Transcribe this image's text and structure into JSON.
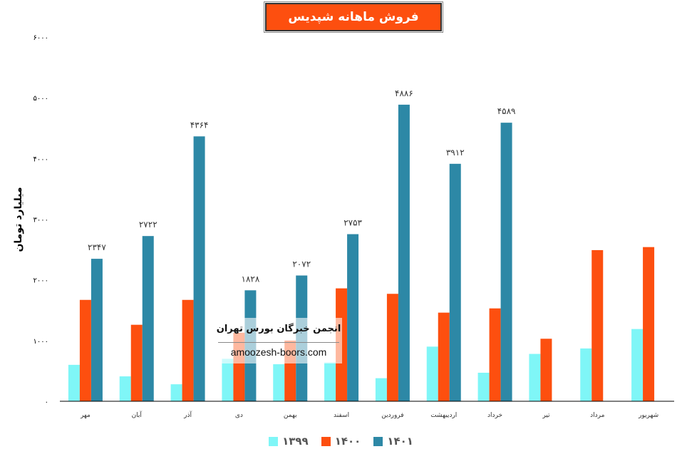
{
  "title": "فروش ماهانه شپدیس",
  "watermark": {
    "line1": "انجمن خبرگان بورس تهران",
    "line2": "amoozesh-boors.com"
  },
  "colors": {
    "s1399": "#7ff6f7",
    "s1400": "#fd4f0f",
    "s1401": "#2d88a6",
    "title_bg": "#fd4f0f"
  },
  "chart_data": {
    "type": "bar",
    "title": "فروش ماهانه شپدیس",
    "ylabel": "میلیارد تومان",
    "xlabel": "",
    "ylim": [
      0,
      6000
    ],
    "yticks": [
      "۰",
      "۱۰۰۰",
      "۲۰۰۰",
      "۳۰۰۰",
      "۴۰۰۰",
      "۵۰۰۰",
      "۶۰۰۰"
    ],
    "categories": [
      "مهر",
      "آبان",
      "آذر",
      "دی",
      "بهمن",
      "اسفند",
      "فروردین",
      "اردیبهشت",
      "خرداد",
      "تیر",
      "مرداد",
      "شهریور"
    ],
    "series": [
      {
        "name": "۱۳۹۹",
        "color": "#7ff6f7",
        "values": [
          600,
          410,
          280,
          700,
          610,
          640,
          380,
          900,
          470,
          780,
          870,
          1190
        ]
      },
      {
        "name": "۱۴۰۰",
        "color": "#fd4f0f",
        "values": [
          1670,
          1260,
          1670,
          1130,
          1000,
          1860,
          1770,
          1460,
          1530,
          1030,
          2490,
          2540
        ]
      },
      {
        "name": "۱۴۰۱",
        "color": "#2d88a6",
        "values": [
          2347,
          2722,
          4364,
          1828,
          2072,
          2753,
          4886,
          3912,
          4589,
          null,
          null,
          null
        ],
        "labels": [
          "۲۳۴۷",
          "۲۷۲۲",
          "۴۳۶۴",
          "۱۸۲۸",
          "۲۰۷۲",
          "۲۷۵۳",
          "۴۸۸۶",
          "۳۹۱۲",
          "۴۵۸۹",
          "",
          "",
          ""
        ]
      }
    ],
    "legend_position": "bottom",
    "grid": false
  }
}
